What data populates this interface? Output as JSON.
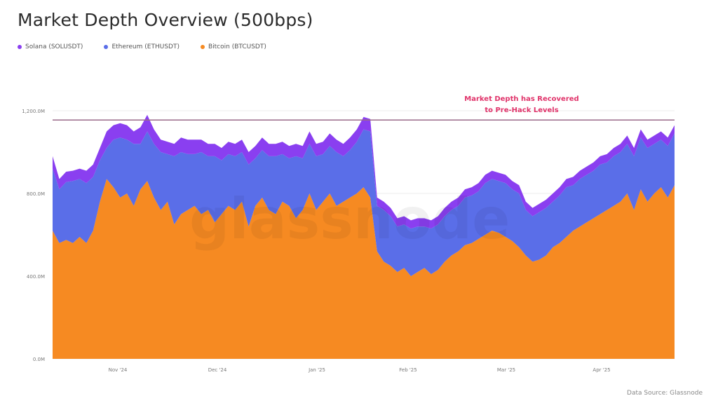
{
  "title": "Market Depth Overview (500bps)",
  "legend": [
    {
      "label": "Solana (SOLUSDT)",
      "color": "#8a3ff0"
    },
    {
      "label": "Ethereum (ETHUSDT)",
      "color": "#5a6ee8"
    },
    {
      "label": "Bitcoin (BTCUSDT)",
      "color": "#f68a22"
    }
  ],
  "annotation": {
    "line1": "Market Depth has Recovered",
    "line2": "to Pre-Hack Levels",
    "color": "#e0336a"
  },
  "watermark": "glassnode",
  "source": "Data Source: Glassnode",
  "chart_data": {
    "type": "area",
    "stacked": true,
    "title": "Market Depth Overview (500bps)",
    "xlabel": "",
    "ylabel": "",
    "ylim": [
      0,
      1200
    ],
    "yticks": [
      "0.0M",
      "400.0M",
      "800.0M",
      "1,200.0M"
    ],
    "xticks": [
      "Nov '24",
      "Dec '24",
      "Jan '25",
      "Feb '25",
      "Mar '25",
      "Apr '25"
    ],
    "reference_line": {
      "value": 1155,
      "label": "Market Depth has Recovered to Pre-Hack Levels"
    },
    "x_index_note": "approx. 90 samples, ~2 days apart, from late Oct 2024 to late Apr 2025",
    "series": [
      {
        "name": "Bitcoin (BTCUSDT)",
        "color": "#f68a22",
        "values": [
          620,
          560,
          575,
          560,
          590,
          560,
          620,
          760,
          870,
          830,
          780,
          800,
          740,
          820,
          860,
          780,
          720,
          760,
          650,
          700,
          720,
          740,
          700,
          720,
          660,
          700,
          740,
          720,
          760,
          640,
          740,
          780,
          720,
          700,
          760,
          740,
          680,
          720,
          800,
          720,
          760,
          800,
          740,
          760,
          780,
          800,
          830,
          780,
          520,
          470,
          450,
          420,
          440,
          400,
          420,
          440,
          410,
          430,
          470,
          500,
          520,
          550,
          560,
          580,
          600,
          620,
          610,
          590,
          570,
          540,
          500,
          470,
          480,
          500,
          540,
          560,
          590,
          620,
          640,
          660,
          680,
          700,
          720,
          740,
          760,
          800,
          720,
          820,
          760,
          800,
          830,
          780,
          840
        ]
      },
      {
        "name": "Ethereum (ETHUSDT)",
        "color": "#5a6ee8",
        "values": [
          300,
          260,
          280,
          300,
          280,
          290,
          260,
          200,
          150,
          230,
          290,
          260,
          300,
          220,
          240,
          260,
          280,
          230,
          330,
          300,
          270,
          250,
          300,
          260,
          320,
          260,
          250,
          260,
          240,
          300,
          230,
          230,
          260,
          280,
          230,
          230,
          300,
          250,
          240,
          260,
          230,
          230,
          260,
          220,
          230,
          250,
          280,
          320,
          220,
          250,
          240,
          220,
          210,
          230,
          220,
          200,
          220,
          220,
          220,
          220,
          220,
          230,
          230,
          230,
          250,
          250,
          250,
          260,
          250,
          260,
          220,
          220,
          230,
          230,
          220,
          230,
          240,
          220,
          230,
          230,
          230,
          240,
          230,
          240,
          240,
          240,
          260,
          250,
          260,
          240,
          230,
          250,
          250
        ]
      },
      {
        "name": "Solana (SOLUSDT)",
        "color": "#8a3ff0",
        "values": [
          60,
          50,
          50,
          50,
          50,
          60,
          60,
          60,
          80,
          70,
          70,
          70,
          60,
          80,
          80,
          70,
          60,
          60,
          60,
          70,
          70,
          70,
          60,
          60,
          60,
          60,
          60,
          60,
          60,
          60,
          60,
          60,
          60,
          60,
          60,
          60,
          60,
          60,
          60,
          60,
          60,
          60,
          60,
          60,
          60,
          60,
          60,
          60,
          40,
          40,
          40,
          40,
          40,
          40,
          40,
          40,
          40,
          40,
          40,
          40,
          40,
          40,
          40,
          40,
          40,
          40,
          40,
          40,
          40,
          40,
          40,
          40,
          40,
          40,
          40,
          40,
          40,
          40,
          40,
          40,
          40,
          40,
          40,
          40,
          40,
          40,
          40,
          40,
          40,
          40,
          40,
          40,
          40
        ]
      }
    ]
  }
}
